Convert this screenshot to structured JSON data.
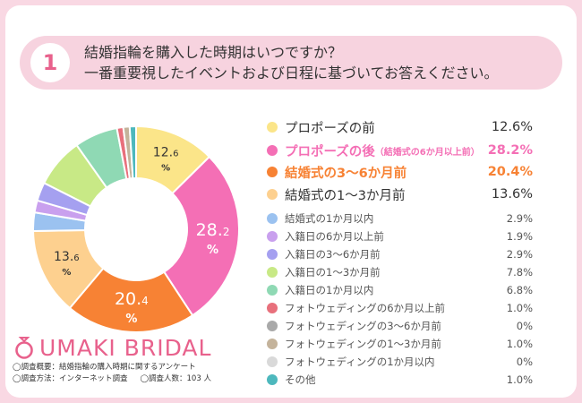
{
  "question": {
    "number": "1",
    "line1": "結婚指輪を購入した時期はいつですか？",
    "line2": "一番重要視したイベントおよび日程に基づいてお答えください。"
  },
  "brand": {
    "name": "UMAKI BRIDAL"
  },
  "notes": {
    "summary": "◯調査概要：結婚指輪の購入時期に関するアンケート",
    "method": "◯調査方法：インターネット調査",
    "respondents": "◯調査人数：103 人"
  },
  "chart_data": {
    "type": "pie",
    "unit": "%",
    "slices": [
      {
        "label": "プロポーズの前",
        "value": 12.6,
        "display": "12.6%",
        "color": "#fbe589",
        "emphasis": "normal"
      },
      {
        "label": "プロポーズの後",
        "note": "（結婚式の6か月以上前）",
        "value": 28.2,
        "display": "28.2%",
        "color": "#f46fb5",
        "emphasis": "highlight"
      },
      {
        "label": "結婚式の3〜6か月前",
        "value": 20.4,
        "display": "20.4%",
        "color": "#f78234",
        "emphasis": "highlight"
      },
      {
        "label": "結婚式の1〜3か月前",
        "value": 13.6,
        "display": "13.6%",
        "color": "#fdd08f",
        "emphasis": "normal"
      },
      {
        "label": "結婚式の1か月以内",
        "value": 2.9,
        "display": "2.9%",
        "color": "#9bc2f0",
        "emphasis": "minor"
      },
      {
        "label": "入籍日の6か月以上前",
        "value": 1.9,
        "display": "1.9%",
        "color": "#c9a0ee",
        "emphasis": "minor"
      },
      {
        "label": "入籍日の3〜6か月前",
        "value": 2.9,
        "display": "2.9%",
        "color": "#a5a0f0",
        "emphasis": "minor"
      },
      {
        "label": "入籍日の1〜3か月前",
        "value": 7.8,
        "display": "7.8%",
        "color": "#c8e986",
        "emphasis": "minor"
      },
      {
        "label": "入籍日の1か月以内",
        "value": 6.8,
        "display": "6.8%",
        "color": "#8fd9b4",
        "emphasis": "minor"
      },
      {
        "label": "フォトウェディングの6か月以上前",
        "value": 1.0,
        "display": "1.0%",
        "color": "#e8707c",
        "emphasis": "minor"
      },
      {
        "label": "フォトウェディングの3〜6か月前",
        "value": 0,
        "display": "0%",
        "color": "#a9a9a9",
        "emphasis": "minor"
      },
      {
        "label": "フォトウェディングの1〜3か月前",
        "value": 1.0,
        "display": "1.0%",
        "color": "#c4b39b",
        "emphasis": "minor"
      },
      {
        "label": "フォトウェディングの1か月以内",
        "value": 0,
        "display": "0%",
        "color": "#d9d9d9",
        "emphasis": "minor"
      },
      {
        "label": "その他",
        "value": 1.0,
        "display": "1.0%",
        "color": "#4db8bd",
        "emphasis": "minor"
      }
    ],
    "inner_labels": [
      {
        "slice": 0,
        "number": "12.",
        "decimal": "6",
        "percent": "%"
      },
      {
        "slice": 1,
        "number": "28.",
        "decimal": "2",
        "percent": "%"
      },
      {
        "slice": 2,
        "number": "20.",
        "decimal": "4",
        "percent": "%"
      },
      {
        "slice": 3,
        "number": "13.",
        "decimal": "6",
        "percent": "%"
      }
    ]
  }
}
